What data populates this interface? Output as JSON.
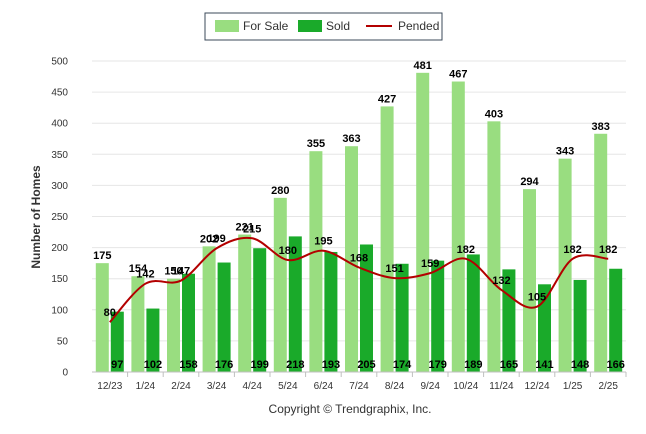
{
  "chart_data": {
    "type": "bar",
    "categories": [
      "12/23",
      "1/24",
      "2/24",
      "3/24",
      "4/24",
      "5/24",
      "6/24",
      "7/24",
      "8/24",
      "9/24",
      "10/24",
      "11/24",
      "12/24",
      "1/25",
      "2/25"
    ],
    "series": [
      {
        "name": "For Sale",
        "kind": "bar",
        "color": "#99dd80",
        "values": [
          175,
          154,
          150,
          202,
          221,
          280,
          355,
          363,
          427,
          481,
          467,
          403,
          294,
          343,
          383
        ]
      },
      {
        "name": "Sold",
        "kind": "bar",
        "color": "#1aaa2a",
        "values": [
          97,
          102,
          158,
          176,
          199,
          218,
          193,
          205,
          174,
          179,
          189,
          165,
          141,
          148,
          166
        ]
      },
      {
        "name": "Pended",
        "kind": "line",
        "color": "#b30000",
        "values": [
          80,
          142,
          147,
          199,
          215,
          180,
          195,
          168,
          151,
          159,
          182,
          132,
          105,
          182,
          182
        ]
      }
    ],
    "ylabel": "Number of Homes",
    "ylim": [
      0,
      500
    ],
    "yticks": [
      0,
      50,
      100,
      150,
      200,
      250,
      300,
      350,
      400,
      450,
      500
    ],
    "grid": true,
    "legend_position": "top-center",
    "copyright": "Copyright © Trendgraphix, Inc."
  }
}
